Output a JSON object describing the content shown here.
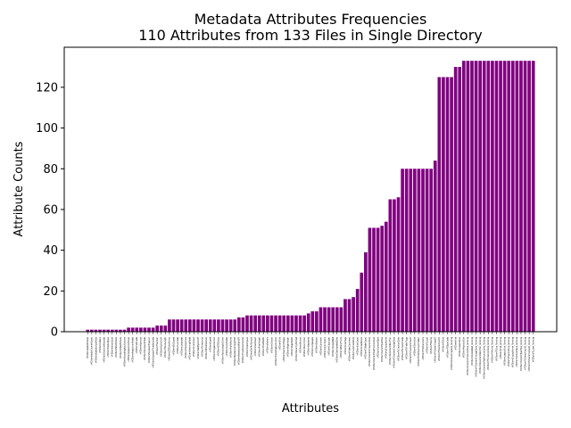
{
  "chart_data": {
    "type": "bar",
    "title": "Metadata Attributes Frequencies",
    "subtitle": "110 Attributes from 133 Files in Single Directory",
    "xlabel": "Attributes",
    "ylabel": "Attribute Counts",
    "ylim": [
      0,
      139.65
    ],
    "yticks": [
      0,
      20,
      40,
      60,
      80,
      100,
      120
    ],
    "bar_color": "#800080",
    "grid": false,
    "legend": "none",
    "categories": [
      "kMDItemAudioBitRate",
      "kMDItemAudioChannelCount",
      "kMDItemAudioSampleRate",
      "kMDItemCodecs",
      "kMDItemDurationSeconds",
      "kMDItemMediaTypes",
      "kMDItemStreamable",
      "kMDItemTotalBitRate",
      "kMDItemVideoBitRate",
      "kMDItemEncodingApplications",
      "kMDItemAcquisitionMake",
      "kMDItemAcquisitionModel",
      "kMDItemAltitude",
      "kMDItemAperture",
      "kMDItemExposureMode",
      "kMDItemExposureProgram",
      "kMDItemExposureTimeSeconds",
      "kMDItemFNumber",
      "kMDItemFlashOnOff",
      "kMDItemFocalLength",
      "kMDItemGPSDateStamp",
      "kMDItemISOSpeed",
      "kMDItemLatitude",
      "kMDItemLongitude",
      "kMDItemMaxAperture",
      "kMDItemMeteringMode",
      "kMDItemOrientation",
      "kMDItemRedEyeOnOff",
      "kMDItemTimestamp",
      "kMDItemWhiteBalance",
      "kMDItemSpeed",
      "kMDItemImageDirection",
      "kMDItemGPSStatus",
      "kMDItemFocalLength35mm",
      "kMDItemLensModel",
      "kMDItemProfileName",
      "kMDItemResolutionHeightDPI",
      "kMDItemResolutionWidthDPI",
      "kMDItemHasAlphaChannel",
      "kMDItemColorSpace",
      "kMDItemBitsPerSample",
      "kMDItemPixelCount",
      "kMDItemPixelHeight",
      "kMDItemPixelWidth",
      "kMDItemAuthors",
      "kMDItemCreator",
      "kMDItemEncodingApplication",
      "kMDItemTitle",
      "kMDItemNumberOfPages",
      "kMDItemPageHeight",
      "kMDItemPageWidth",
      "kMDItemSecurityMethod",
      "kMDItemVersion",
      "kMDItemDescription",
      "kMDItemKeywords",
      "kMDItemLanguages",
      "kMDItemSubject",
      "kMDItemComment",
      "kMDItemContributors",
      "kMDItemCopyright",
      "kMDItemDateAdded",
      "kMDItemDownloadedDate",
      "kMDItemWhereFroms",
      "kMDItemUserTags",
      "kMDItemFinderComment",
      "kMDItemLastUsedDate",
      "kMDItemUseCount",
      "kMDItemUsedDates",
      "kMDItemFSNodeCount",
      "kMDItemContentCreationDate",
      "kMDItemContentModificationDate",
      "kMDItemContentType",
      "kMDItemContentTypeTree",
      "kMDItemDisplayName",
      "kMDItemDocumentIdentifier",
      "kMDItemFSContentChangeDate",
      "kMDItemFSCreationDate",
      "kMDItemFSCreatorCode",
      "kMDItemFSFinderFlags",
      "kMDItemFSHasCustomIcon",
      "kMDItemFSInvisible",
      "kMDItemFSIsExtensionHidden",
      "kMDItemFSIsStationery",
      "kMDItemFSLabel",
      "kMDItemFSName",
      "kMDItemFSOwnerGroupID",
      "kMDItemFSOwnerUserID",
      "kMDItemFSSize",
      "kMDItemFSTypeCode",
      "kMDItemInterestingDate_Ranking",
      "kMDItemKind",
      "kMDItemLogicalSize",
      "kMDItemPhysicalSize",
      "kMDItemContentCreationDate_Ranking",
      "kMDItemDateAdded_Ranking",
      "kMDItemFSContentChangeDate_Ranking",
      "kMDItemDocumentIdentifier_Ranking",
      "kMDItemContentModificationDate_Ranking",
      "kMDItemFSCreationDate_Ranking",
      "kMDItemFSName_Ranking",
      "kMDItemFSSize_Ranking",
      "kMDItemKind_Ranking",
      "kMDItemLogicalSize_Ranking",
      "kMDItemPhysicalSize_Ranking",
      "kMDItemDisplayName_Ranking",
      "kMDItemContentType_Ranking",
      "kMDItemContentTypeTree_Ranking",
      "kMDItemFSOwnerUserID_Ranking",
      "kMDItemFSOwnerGroupID_Ranking",
      "kMDItemFSLabel_Ranking"
    ],
    "values": [
      1,
      1,
      1,
      1,
      1,
      1,
      1,
      1,
      1,
      1,
      2,
      2,
      2,
      2,
      2,
      2,
      2,
      3,
      3,
      3,
      6,
      6,
      6,
      6,
      6,
      6,
      6,
      6,
      6,
      6,
      6,
      6,
      6,
      6,
      6,
      6,
      6,
      7,
      7,
      8,
      8,
      8,
      8,
      8,
      8,
      8,
      8,
      8,
      8,
      8,
      8,
      8,
      8,
      8,
      9,
      10,
      10,
      12,
      12,
      12,
      12,
      12,
      12,
      16,
      16,
      17,
      21,
      29,
      39,
      51,
      51,
      51,
      52,
      54,
      65,
      65,
      66,
      80,
      80,
      80,
      80,
      80,
      80,
      80,
      80,
      84,
      125,
      125,
      125,
      125,
      130,
      130,
      133,
      133,
      133,
      133,
      133,
      133,
      133,
      133,
      133,
      133,
      133,
      133,
      133,
      133,
      133,
      133,
      133,
      133
    ]
  }
}
